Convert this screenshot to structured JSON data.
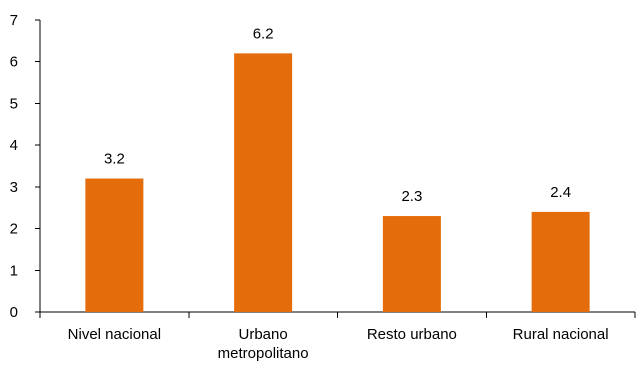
{
  "chart_data": {
    "type": "bar",
    "categories": [
      [
        "Nivel nacional"
      ],
      [
        "Urbano",
        "metropolitano"
      ],
      [
        "Resto urbano"
      ],
      [
        "Rural nacional"
      ]
    ],
    "values": [
      3.2,
      6.2,
      2.3,
      2.4
    ],
    "data_labels": [
      "3.2",
      "6.2",
      "2.3",
      "2.4"
    ],
    "ylim": [
      0,
      7
    ],
    "y_ticks": [
      0,
      1,
      2,
      3,
      4,
      5,
      6,
      7
    ],
    "y_tick_labels": [
      "0",
      "1",
      "2",
      "3",
      "4",
      "5",
      "6",
      "7"
    ],
    "grid": false,
    "legend": "none",
    "bar_color": "#E46C0A"
  }
}
